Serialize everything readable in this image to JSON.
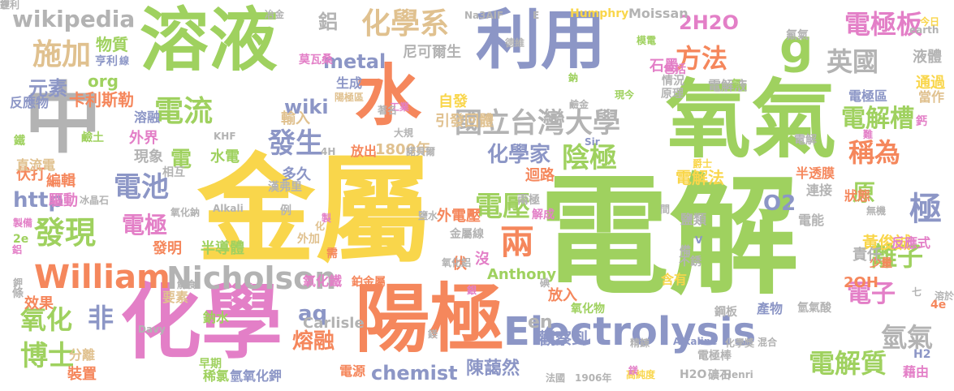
{
  "palette": {
    "green": "#9fd15f",
    "yellow": "#f9d64b",
    "blue": "#8c96c6",
    "orange": "#f5875c",
    "pink": "#e37fc7",
    "grey": "#b3b3b3",
    "tan": "#e0c18f"
  },
  "words": [
    {
      "t": "電解",
      "c": "green"
    },
    {
      "t": "金屬",
      "c": "yellow"
    },
    {
      "t": "陽極",
      "c": "orange"
    },
    {
      "t": "化學",
      "c": "pink"
    },
    {
      "t": "中",
      "c": "grey"
    },
    {
      "t": "溶液",
      "c": "green"
    },
    {
      "t": "利用",
      "c": "blue"
    },
    {
      "t": "水",
      "c": "orange"
    },
    {
      "t": "氧氣",
      "c": "green"
    },
    {
      "t": "g",
      "c": "green"
    },
    {
      "t": "Electrolysis",
      "c": "blue"
    },
    {
      "t": "Nicholson",
      "c": "grey"
    },
    {
      "t": "William",
      "c": "orange"
    },
    {
      "t": "國立台灣大學",
      "c": "grey"
    },
    {
      "t": "電極板",
      "c": "pink"
    },
    {
      "t": "化學系",
      "c": "tan"
    },
    {
      "t": "施加",
      "c": "tan"
    },
    {
      "t": "電流",
      "c": "green"
    },
    {
      "t": "發現",
      "c": "green"
    },
    {
      "t": "電池",
      "c": "blue"
    },
    {
      "t": "陰極",
      "c": "green"
    },
    {
      "t": "電壓",
      "c": "green"
    },
    {
      "t": "方法",
      "c": "orange"
    },
    {
      "t": "2H2O",
      "c": "pink"
    },
    {
      "t": "英國",
      "c": "grey"
    },
    {
      "t": "電解槽",
      "c": "green"
    },
    {
      "t": "稱為",
      "c": "orange"
    },
    {
      "t": "極",
      "c": "blue"
    },
    {
      "t": "離子",
      "c": "green"
    },
    {
      "t": "電子",
      "c": "pink"
    },
    {
      "t": "氫氣",
      "c": "grey"
    },
    {
      "t": "電解質",
      "c": "green"
    },
    {
      "t": "博士",
      "c": "green"
    },
    {
      "t": "氧化",
      "c": "green"
    },
    {
      "t": "非",
      "c": "blue"
    },
    {
      "t": "兩",
      "c": "orange"
    },
    {
      "t": "發生",
      "c": "blue"
    },
    {
      "t": "化學家",
      "c": "blue"
    },
    {
      "t": "電極",
      "c": "pink"
    },
    {
      "t": "O2",
      "c": "blue"
    },
    {
      "t": "aq",
      "c": "blue"
    },
    {
      "t": "熔融",
      "c": "orange"
    },
    {
      "t": "chemist",
      "c": "blue"
    },
    {
      "t": "陳藹然",
      "c": "blue"
    },
    {
      "t": "wikipedia",
      "c": "grey"
    },
    {
      "t": "元素",
      "c": "blue"
    },
    {
      "t": "metal",
      "c": "blue"
    },
    {
      "t": "wiki",
      "c": "blue"
    },
    {
      "t": "http",
      "c": "blue"
    },
    {
      "t": "電",
      "c": "green"
    },
    {
      "t": "原",
      "c": "green"
    },
    {
      "t": "en",
      "c": "grey"
    },
    {
      "t": "鋁",
      "c": "grey"
    },
    {
      "t": "尼可爾生",
      "c": "grey"
    },
    {
      "t": "卡利斯勒",
      "c": "orange"
    },
    {
      "t": "物質",
      "c": "green"
    },
    {
      "t": "org",
      "c": "green"
    },
    {
      "t": "自發",
      "c": "yellow"
    },
    {
      "t": "引發回體",
      "c": "tan"
    },
    {
      "t": "1800年",
      "c": "tan"
    },
    {
      "t": "電解法",
      "c": "yellow"
    },
    {
      "t": "外電壓",
      "c": "orange"
    },
    {
      "t": "Anthony",
      "c": "green"
    },
    {
      "t": "觀察到",
      "c": "blue"
    },
    {
      "t": "黃俊誠",
      "c": "yellow"
    },
    {
      "t": "責任",
      "c": "grey"
    },
    {
      "t": "Carlisle",
      "c": "grey"
    },
    {
      "t": "迴路",
      "c": "orange"
    },
    {
      "t": "外界",
      "c": "pink"
    },
    {
      "t": "現象",
      "c": "grey"
    },
    {
      "t": "水電",
      "c": "green"
    },
    {
      "t": "多久",
      "c": "blue"
    },
    {
      "t": "輸入",
      "c": "tan"
    },
    {
      "t": "生成",
      "c": "blue"
    },
    {
      "t": "溶融",
      "c": "blue"
    },
    {
      "t": "驅動",
      "c": "pink"
    },
    {
      "t": "編輯",
      "c": "orange"
    },
    {
      "t": "伏打",
      "c": "orange"
    },
    {
      "t": "直流電",
      "c": "tan"
    },
    {
      "t": "發明",
      "c": "orange"
    },
    {
      "t": "半導體",
      "c": "green"
    },
    {
      "t": "效果",
      "c": "orange"
    },
    {
      "t": "要素",
      "c": "tan"
    },
    {
      "t": "分離",
      "c": "tan"
    },
    {
      "t": "裝置",
      "c": "orange"
    },
    {
      "t": "鈉水",
      "c": "green"
    },
    {
      "t": "放出",
      "c": "orange"
    },
    {
      "t": "大規",
      "c": "grey"
    },
    {
      "t": "諾貝爾",
      "c": "grey"
    },
    {
      "t": "Na3AlF",
      "c": "grey"
    },
    {
      "t": "E",
      "c": "grey"
    },
    {
      "t": "Humphry",
      "c": "yellow"
    },
    {
      "t": "Moissan",
      "c": "grey"
    },
    {
      "t": "今日",
      "c": "yellow"
    },
    {
      "t": "液體",
      "c": "grey"
    },
    {
      "t": "通過",
      "c": "yellow"
    },
    {
      "t": "當作",
      "c": "tan"
    },
    {
      "t": "反應物",
      "c": "blue"
    },
    {
      "t": "電解液",
      "c": "grey"
    },
    {
      "t": "石墨",
      "c": "pink"
    },
    {
      "t": "原理",
      "c": "grey"
    },
    {
      "t": "電極區",
      "c": "blue"
    },
    {
      "t": "半透膜",
      "c": "orange"
    },
    {
      "t": "狀態",
      "c": "orange"
    },
    {
      "t": "連接",
      "c": "grey"
    },
    {
      "t": "鹽類",
      "c": "grey"
    },
    {
      "t": "電能",
      "c": "grey"
    },
    {
      "t": "反應式",
      "c": "pink"
    },
    {
      "t": "少量",
      "c": "orange"
    },
    {
      "t": "不銹",
      "c": "grey"
    },
    {
      "t": "含有",
      "c": "yellow"
    },
    {
      "t": "2OH",
      "c": "orange"
    },
    {
      "t": "4e",
      "c": "orange"
    },
    {
      "t": "產物",
      "c": "blue"
    },
    {
      "t": "氫氣酸",
      "c": "grey"
    },
    {
      "t": "鋼板",
      "c": "grey"
    },
    {
      "t": "溶於",
      "c": "grey"
    },
    {
      "t": "H2",
      "c": "blue"
    },
    {
      "t": "藉由",
      "c": "pink"
    },
    {
      "t": "礦石",
      "c": "grey"
    },
    {
      "t": "Henri",
      "c": "grey"
    },
    {
      "t": "H2O",
      "c": "grey"
    },
    {
      "t": "高純度",
      "c": "yellow"
    },
    {
      "t": "1906年",
      "c": "grey"
    },
    {
      "t": "法國",
      "c": "grey"
    },
    {
      "t": "電源",
      "c": "orange"
    },
    {
      "t": "氫氧化鉀",
      "c": "blue"
    },
    {
      "t": "稀氯",
      "c": "green"
    },
    {
      "t": "早期",
      "c": "green"
    },
    {
      "t": "鉑金屬",
      "c": "orange"
    },
    {
      "t": "氧化鐵",
      "c": "pink"
    },
    {
      "t": "伏",
      "c": "orange"
    },
    {
      "t": "沒",
      "c": "pink"
    },
    {
      "t": "放入",
      "c": "orange"
    },
    {
      "t": "兩極",
      "c": "grey"
    },
    {
      "t": "解成",
      "c": "pink"
    },
    {
      "t": "金屬線",
      "c": "grey"
    },
    {
      "t": "鹽水",
      "c": "grey"
    },
    {
      "t": "氧化物",
      "c": "green"
    },
    {
      "t": "精鍊",
      "c": "grey"
    },
    {
      "t": "Alkaline",
      "c": "blue"
    },
    {
      "t": "電極棒",
      "c": "grey"
    },
    {
      "t": "化學獎",
      "c": "grey"
    },
    {
      "t": "混合",
      "c": "grey"
    },
    {
      "t": "Alkali",
      "c": "grey"
    },
    {
      "t": "氧化鈉",
      "c": "grey"
    },
    {
      "t": "漢弗里",
      "c": "grey"
    },
    {
      "t": "相互",
      "c": "grey"
    },
    {
      "t": "例",
      "c": "grey"
    },
    {
      "t": "化",
      "c": "tan"
    },
    {
      "t": "外加",
      "c": "tan"
    },
    {
      "t": "需",
      "c": "orange"
    },
    {
      "t": "製備",
      "c": "pink"
    },
    {
      "t": "2e",
      "c": "green"
    },
    {
      "t": "鋁",
      "c": "pink"
    },
    {
      "t": "條",
      "c": "grey"
    },
    {
      "t": "冰晶石",
      "c": "grey"
    },
    {
      "t": "鐵",
      "c": "green"
    },
    {
      "t": "鹼土",
      "c": "green"
    },
    {
      "t": "KHF",
      "c": "grey"
    },
    {
      "t": "4H",
      "c": "grey"
    },
    {
      "t": "莫瓦桑",
      "c": "pink"
    },
    {
      "t": "陽極區",
      "c": "tan"
    },
    {
      "t": "工業",
      "c": "pink"
    },
    {
      "t": "著名",
      "c": "grey"
    },
    {
      "t": "亨利",
      "c": "blue"
    },
    {
      "t": "線",
      "c": "blue"
    },
    {
      "t": "冶金",
      "c": "grey"
    },
    {
      "t": "模電",
      "c": "green"
    },
    {
      "t": "包括",
      "c": "pink"
    },
    {
      "t": "情況",
      "c": "grey"
    },
    {
      "t": "德維",
      "c": "grey"
    },
    {
      "t": "鈉",
      "c": "green"
    },
    {
      "t": "現今",
      "c": "green"
    },
    {
      "t": "鹼金",
      "c": "grey"
    },
    {
      "t": "氫",
      "c": "green"
    },
    {
      "t": "氟氣",
      "c": "grey"
    },
    {
      "t": "earth",
      "c": "grey"
    },
    {
      "t": "鈣",
      "c": "pink"
    },
    {
      "t": "電解",
      "c": "grey"
    },
    {
      "t": "鎂",
      "c": "pink"
    },
    {
      "t": "爵士",
      "c": "yellow"
    },
    {
      "t": "Sir",
      "c": "blue"
    },
    {
      "t": "無機",
      "c": "grey"
    },
    {
      "t": "七",
      "c": "grey"
    },
    {
      "t": "間",
      "c": "grey"
    },
    {
      "t": "V",
      "c": "blue"
    },
    {
      "t": "備",
      "c": "grey"
    },
    {
      "t": "難",
      "c": "pink"
    },
    {
      "t": "氧化鋁",
      "c": "grey"
    },
    {
      "t": "鎂",
      "c": "grey"
    },
    {
      "t": "銀",
      "c": "pink"
    },
    {
      "t": "碘",
      "c": "grey"
    },
    {
      "t": "解食",
      "c": "grey"
    },
    {
      "t": "Davy",
      "c": "grey"
    },
    {
      "t": "鉀",
      "c": "grey"
    },
    {
      "t": "製",
      "c": "pink"
    },
    {
      "t": "鋰",
      "c": "grey"
    },
    {
      "t": "亨利",
      "c": "grey"
    }
  ]
}
